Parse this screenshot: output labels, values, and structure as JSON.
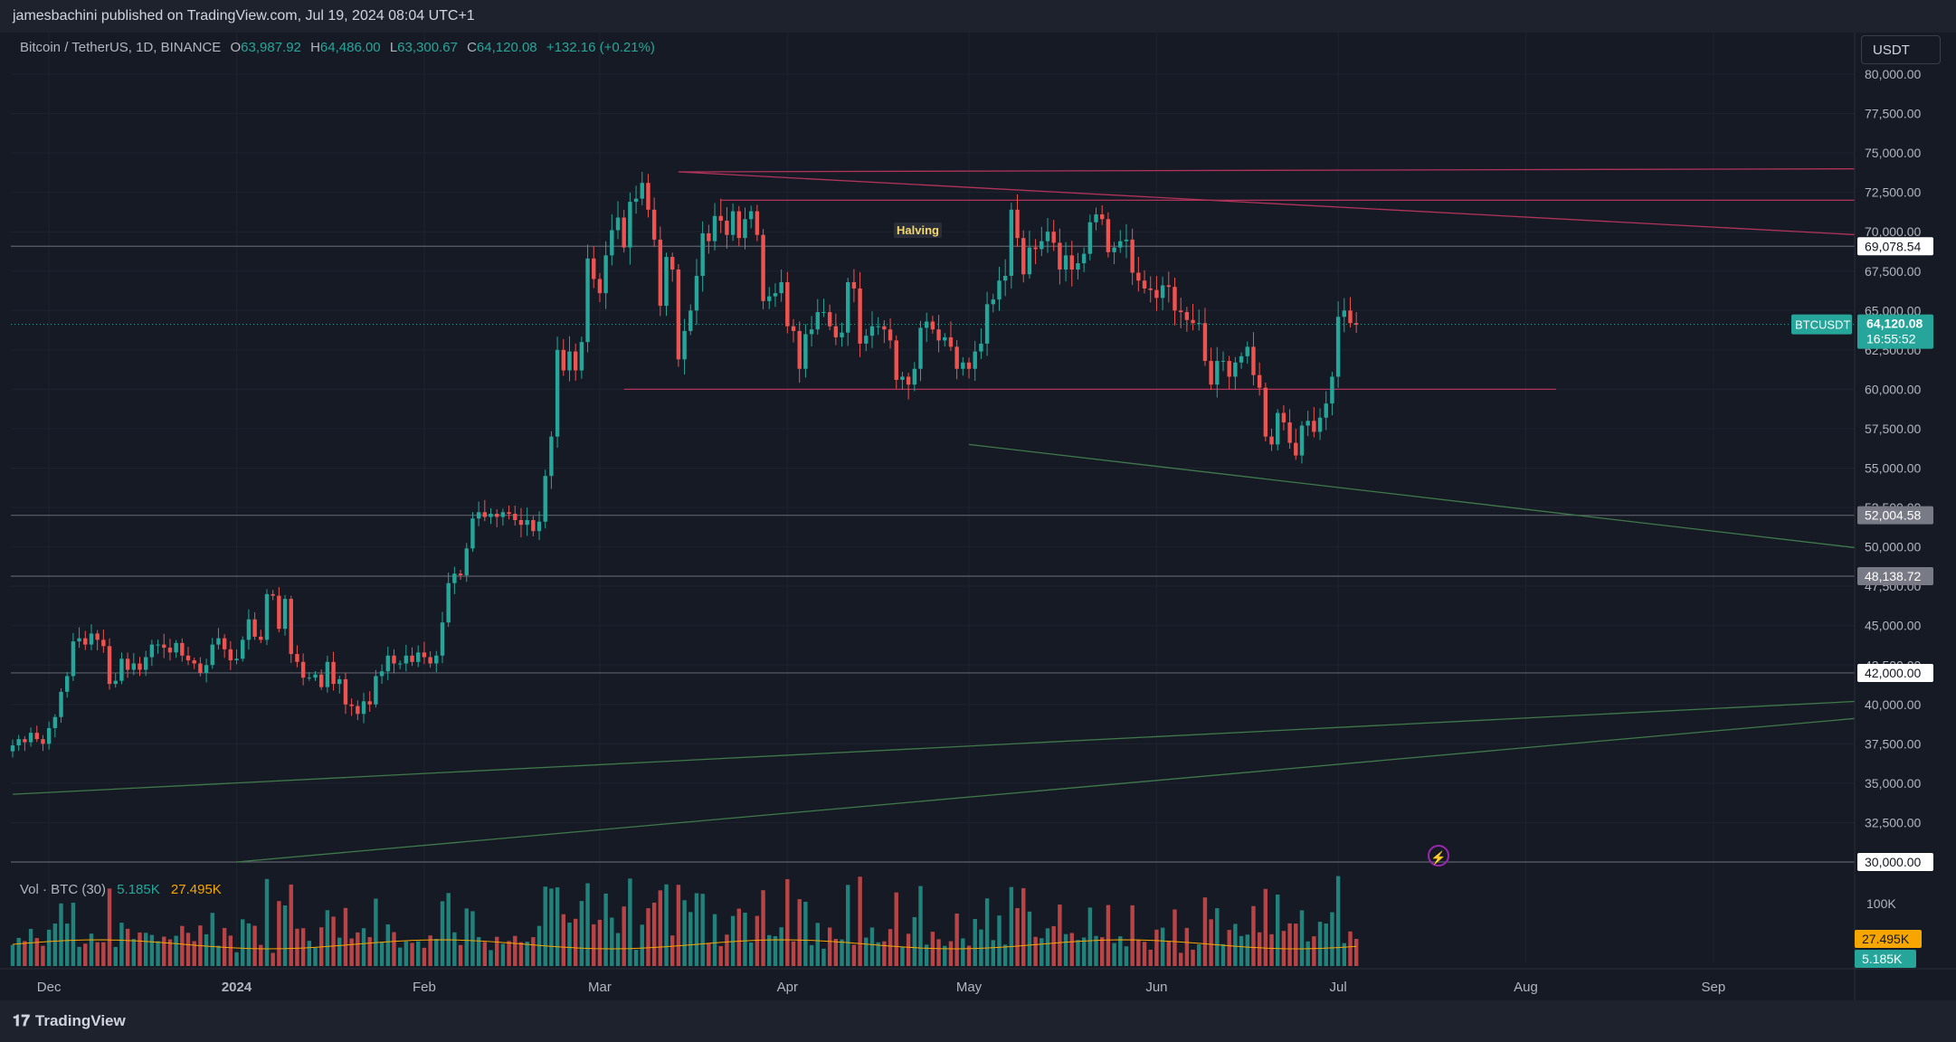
{
  "publish_line": "jamesbachini published on TradingView.com, Jul 19, 2024 08:04 UTC+1",
  "legend": {
    "symbol": "Bitcoin / TetherUS, 1D, BINANCE",
    "o_label": "O",
    "o_value": "63,987.92",
    "h_label": "H",
    "h_value": "64,486.00",
    "l_label": "L",
    "l_value": "63,300.67",
    "c_label": "C",
    "c_value": "64,120.08",
    "change": "+132.16 (+0.21%)"
  },
  "currency_button": "USDT",
  "price_axis": {
    "ticks": [
      "80,000.00",
      "77,500.00",
      "75,000.00",
      "72,500.00",
      "70,000.00",
      "67,500.00",
      "65,000.00",
      "62,500.00",
      "60,000.00",
      "57,500.00",
      "55,000.00",
      "52,500.00",
      "50,000.00",
      "47,500.00",
      "45,000.00",
      "42,500.00",
      "40,000.00",
      "37,500.00",
      "35,000.00",
      "32,500.00",
      "30,000.00"
    ],
    "labels": [
      {
        "text": "69,078.54",
        "value": 69078.54,
        "style": "white"
      },
      {
        "text": "52,004.58",
        "value": 52004.58,
        "style": "gray"
      },
      {
        "text": "48,138.72",
        "value": 48138.72,
        "style": "gray"
      },
      {
        "text": "42,000.00",
        "value": 42000,
        "style": "white"
      },
      {
        "text": "30,000.00",
        "value": 30000,
        "style": "white"
      }
    ],
    "current_symbol": "BTCUSDT",
    "current_price": "64,120.08",
    "countdown": "16:55:52"
  },
  "volume": {
    "legend_label": "Vol · BTC (30)",
    "value": "5.185K",
    "ma_value": "27.495K",
    "axis_tick": "100K",
    "ma_badge": "27.495K",
    "value_badge": "5.185K"
  },
  "time_axis": [
    "Dec",
    "2024",
    "Feb",
    "Mar",
    "Apr",
    "May",
    "Jun",
    "Jul",
    "Aug",
    "Sep"
  ],
  "halving_label": "Halving",
  "footer": {
    "brand": "TradingView"
  },
  "colors": {
    "up": "#26a69a",
    "down": "#ef5350",
    "background": "#161a25",
    "resistance": "#b2345a",
    "support": "#3f7a4a"
  },
  "chart_data": {
    "type": "candlestick",
    "title": "Bitcoin / TetherUS, 1D, BINANCE",
    "ylim": [
      30000,
      80000
    ],
    "x_start": "2023-11-25",
    "x_end": "2024-07-19",
    "closes": [
      37400,
      37800,
      37600,
      38200,
      37800,
      37500,
      38500,
      39200,
      40800,
      41800,
      44000,
      44200,
      43800,
      44500,
      44100,
      43700,
      41300,
      41500,
      42900,
      42200,
      42600,
      42200,
      43000,
      43800,
      43800,
      43600,
      43300,
      43900,
      43100,
      42800,
      42600,
      42000,
      42500,
      43800,
      44200,
      43500,
      42800,
      42900,
      44100,
      45400,
      44300,
      44100,
      47000,
      46900,
      44800,
      46700,
      43200,
      42700,
      41700,
      41700,
      41900,
      41100,
      42700,
      41300,
      41600,
      40000,
      39900,
      39400,
      40200,
      40000,
      41800,
      42100,
      43100,
      42600,
      42600,
      43100,
      42700,
      43300,
      43000,
      42600,
      43100,
      45200,
      47700,
      48300,
      48200,
      49900,
      51800,
      52200,
      51900,
      52100,
      51900,
      52200,
      52100,
      51700,
      51400,
      51700,
      51000,
      51600,
      54500,
      57000,
      62500,
      61200,
      62400,
      61200,
      63000,
      68300,
      67000,
      66100,
      68500,
      70100,
      70900,
      69000,
      71900,
      72100,
      73100,
      71400,
      69500,
      65300,
      68400,
      67600,
      61900,
      63700,
      65000,
      67200,
      69900,
      69400,
      71000,
      70700,
      69800,
      71300,
      69600,
      70800,
      71300,
      69800,
      65600,
      65900,
      66100,
      66800,
      64000,
      63700,
      61300,
      63500,
      63800,
      64900,
      64900,
      64000,
      63300,
      63600,
      66800,
      66400,
      62900,
      63400,
      64000,
      64000,
      63800,
      63100,
      60600,
      60800,
      60300,
      61300,
      63900,
      64300,
      63800,
      63100,
      63300,
      62700,
      61300,
      61700,
      61300,
      62400,
      62900,
      65400,
      65700,
      66900,
      67200,
      71400,
      69600,
      67300,
      69000,
      68900,
      69400,
      70000,
      69300,
      67600,
      68500,
      67600,
      68000,
      68600,
      70600,
      71100,
      70800,
      68700,
      69000,
      69400,
      69500,
      67400,
      66900,
      66400,
      66300,
      65800,
      66600,
      66500,
      65000,
      64900,
      64400,
      64200,
      64200,
      61800,
      60300,
      61800,
      61800,
      60800,
      61700,
      62100,
      62700,
      60900,
      60100,
      57000,
      56500,
      58500,
      57900,
      56600,
      55800,
      57700,
      58000,
      57300,
      58200,
      59100,
      60800,
      64600,
      65000,
      64200,
      64100
    ]
  }
}
